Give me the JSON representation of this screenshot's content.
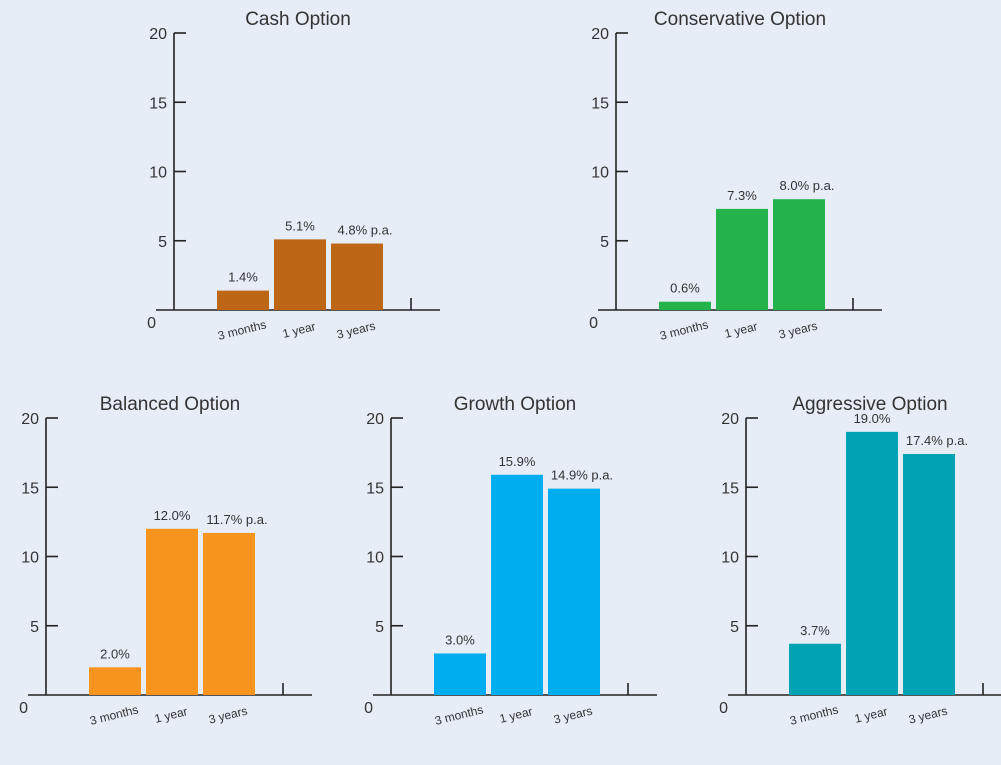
{
  "chart_data": [
    {
      "type": "bar",
      "title": "Cash Option",
      "categories": [
        "3 months",
        "1 year",
        "3 years"
      ],
      "values": [
        1.4,
        5.1,
        4.8
      ],
      "value_labels": [
        "1.4%",
        "5.1%",
        "4.8% p.a."
      ],
      "y_ticks": [
        "0",
        "5",
        "10",
        "15",
        "20"
      ],
      "ylim": [
        0,
        20
      ],
      "color": "#bd6716"
    },
    {
      "type": "bar",
      "title": "Conservative Option",
      "categories": [
        "3 months",
        "1 year",
        "3 years"
      ],
      "values": [
        0.6,
        7.3,
        8.0
      ],
      "value_labels": [
        "0.6%",
        "7.3%",
        "8.0% p.a."
      ],
      "y_ticks": [
        "0",
        "5",
        "10",
        "15",
        "20"
      ],
      "ylim": [
        0,
        20
      ],
      "color": "#24b34b"
    },
    {
      "type": "bar",
      "title": "Balanced Option",
      "categories": [
        "3 months",
        "1 year",
        "3 years"
      ],
      "values": [
        2.0,
        12.0,
        11.7
      ],
      "value_labels": [
        "2.0%",
        "12.0%",
        "11.7% p.a."
      ],
      "y_ticks": [
        "0",
        "5",
        "10",
        "15",
        "20"
      ],
      "ylim": [
        0,
        20
      ],
      "color": "#f7941d"
    },
    {
      "type": "bar",
      "title": "Growth Option",
      "categories": [
        "3 months",
        "1 year",
        "3 years"
      ],
      "values": [
        3.0,
        15.9,
        14.9
      ],
      "value_labels": [
        "3.0%",
        "15.9%",
        "14.9% p.a."
      ],
      "y_ticks": [
        "0",
        "5",
        "10",
        "15",
        "20"
      ],
      "ylim": [
        0,
        20
      ],
      "color": "#00aeef"
    },
    {
      "type": "bar",
      "title": "Aggressive Option",
      "categories": [
        "3 months",
        "1 year",
        "3 years"
      ],
      "values": [
        3.7,
        19.0,
        17.4
      ],
      "value_labels": [
        "3.7%",
        "19.0%",
        "17.4% p.a."
      ],
      "y_ticks": [
        "0",
        "5",
        "10",
        "15",
        "20"
      ],
      "ylim": [
        0,
        20
      ],
      "color": "#00a3b4"
    }
  ]
}
